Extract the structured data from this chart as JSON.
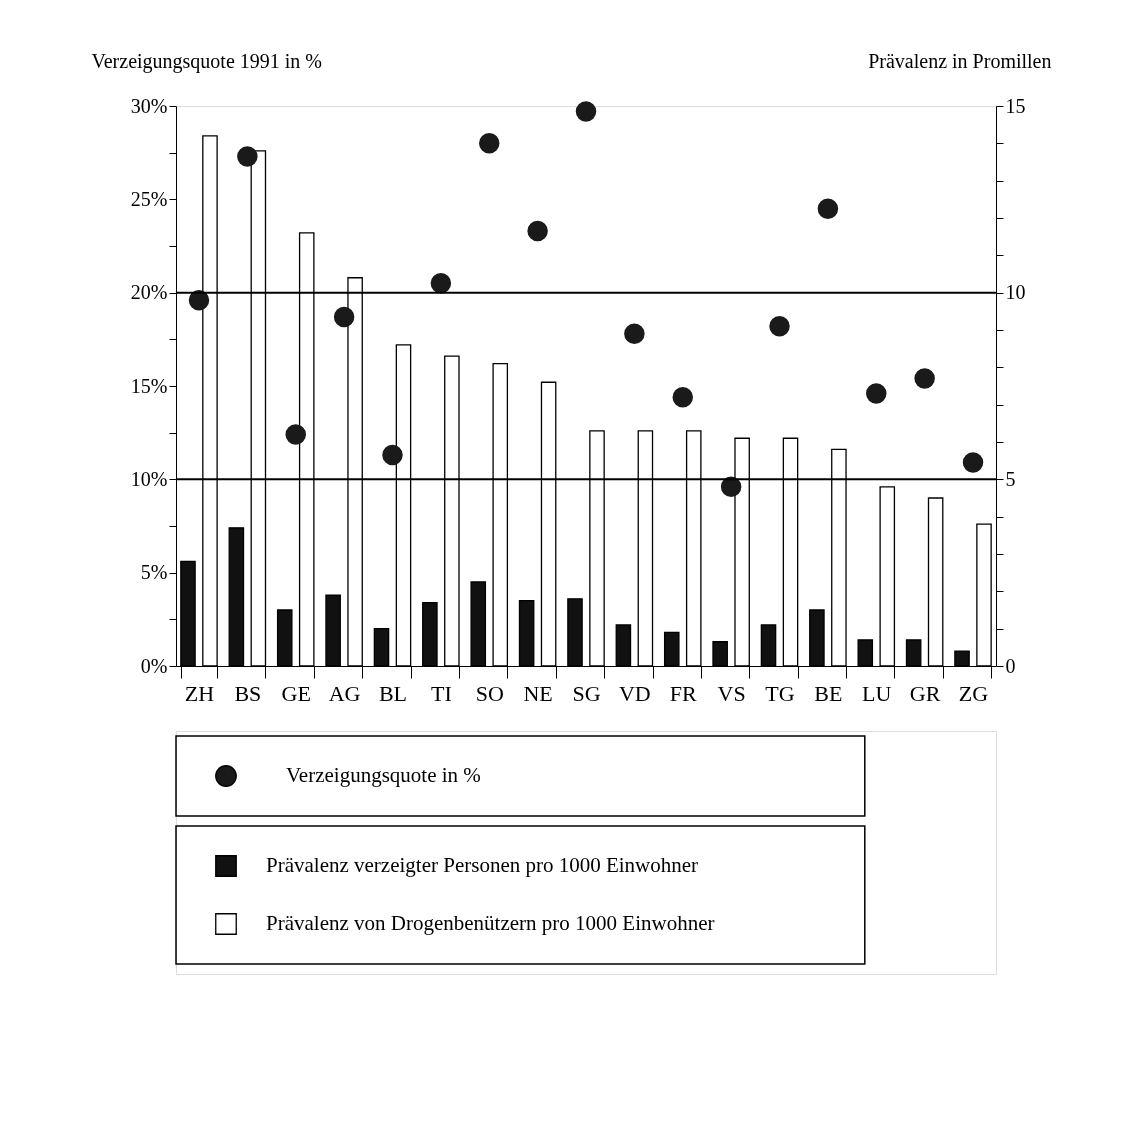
{
  "chart_data": {
    "type": "bar",
    "categories": [
      "ZH",
      "BS",
      "GE",
      "AG",
      "BL",
      "TI",
      "SO",
      "NE",
      "SG",
      "VD",
      "FR",
      "VS",
      "TG",
      "BE",
      "LU",
      "GR",
      "ZG"
    ],
    "series": [
      {
        "name": "Verzeigungsquote in %",
        "type": "scatter",
        "axis": "y",
        "color": "#1a1a1a",
        "values": [
          19.6,
          27.3,
          12.4,
          18.7,
          11.3,
          20.5,
          28.0,
          23.3,
          29.7,
          17.8,
          14.4,
          9.6,
          18.2,
          24.5,
          14.6,
          15.4,
          10.9
        ]
      },
      {
        "name": "Prävalenz verzeigter Personen pro 1000 Einwohner",
        "axis": "y2",
        "color": "#111111",
        "values": [
          2.8,
          3.7,
          1.5,
          1.9,
          1.0,
          1.7,
          2.25,
          1.75,
          1.8,
          1.1,
          0.9,
          0.65,
          1.1,
          1.5,
          0.7,
          0.7,
          0.4
        ]
      },
      {
        "name": "Prävalenz von Drogenbenützern pro 1000 Einwohner",
        "axis": "y2",
        "color": "#ffffff",
        "values": [
          14.2,
          13.8,
          11.6,
          10.4,
          8.6,
          8.3,
          8.1,
          7.6,
          6.3,
          6.3,
          6.3,
          6.1,
          6.1,
          5.8,
          4.8,
          4.5,
          3.8
        ]
      }
    ],
    "ylabel": "Verzeigungsquote 1991 in %",
    "y2label": "Prävalenz in Promillen",
    "ylim": [
      0,
      30
    ],
    "yticks": [
      {
        "value": 0,
        "label": "0%"
      },
      {
        "value": 2.5,
        "label": null
      },
      {
        "value": 5,
        "label": "5%"
      },
      {
        "value": 7.5,
        "label": null
      },
      {
        "value": 10,
        "label": "10%"
      },
      {
        "value": 12.5,
        "label": null
      },
      {
        "value": 15,
        "label": "15%"
      },
      {
        "value": 17.5,
        "label": null
      },
      {
        "value": 20,
        "label": "20%"
      },
      {
        "value": 22.5,
        "label": null
      },
      {
        "value": 25,
        "label": "25%"
      },
      {
        "value": 27.5,
        "label": null
      },
      {
        "value": 30,
        "label": "30%"
      }
    ],
    "y2lim": [
      0,
      15
    ],
    "y2ticks": [
      0,
      {
        "value": 1,
        "label": null
      },
      {
        "value": 2,
        "label": null
      },
      {
        "value": 3,
        "label": null
      },
      {
        "value": 4,
        "label": null
      },
      5,
      {
        "value": 6,
        "label": null
      },
      {
        "value": 7,
        "label": null
      },
      {
        "value": 8,
        "label": null
      },
      {
        "value": 9,
        "label": null
      },
      10,
      {
        "value": 11,
        "label": null
      },
      {
        "value": 12,
        "label": null
      },
      {
        "value": 13,
        "label": null
      },
      {
        "value": 14,
        "label": null
      },
      15
    ],
    "ref_lines": [
      {
        "axis": "y",
        "value": 10
      },
      {
        "axis": "y",
        "value": 20
      }
    ],
    "marker": "circle",
    "legend": "bottom",
    "grid": false
  }
}
